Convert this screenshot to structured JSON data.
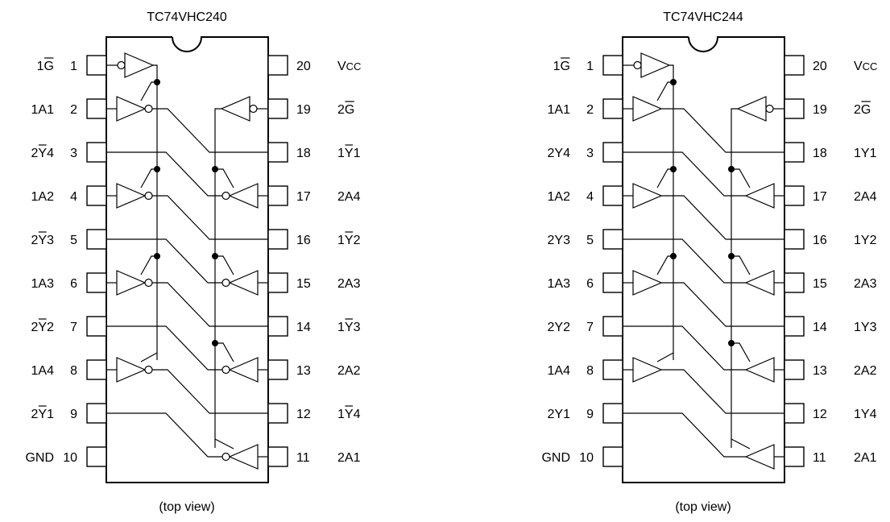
{
  "chips": [
    {
      "title": "TC74VHC240",
      "inverting": true,
      "caption": "(top view)",
      "left_pins": [
        {
          "num": "1",
          "label": "1G",
          "bar": "last"
        },
        {
          "num": "2",
          "label": "1A1",
          "bar": "none"
        },
        {
          "num": "3",
          "label": "2Y4",
          "bar": "mid"
        },
        {
          "num": "4",
          "label": "1A2",
          "bar": "none"
        },
        {
          "num": "5",
          "label": "2Y3",
          "bar": "mid"
        },
        {
          "num": "6",
          "label": "1A3",
          "bar": "none"
        },
        {
          "num": "7",
          "label": "2Y2",
          "bar": "mid"
        },
        {
          "num": "8",
          "label": "1A4",
          "bar": "none"
        },
        {
          "num": "9",
          "label": "2Y1",
          "bar": "mid"
        },
        {
          "num": "10",
          "label": "GND",
          "bar": "none"
        }
      ],
      "right_pins": [
        {
          "num": "20",
          "label": "VCC",
          "bar": "none"
        },
        {
          "num": "19",
          "label": "2G",
          "bar": "last"
        },
        {
          "num": "18",
          "label": "1Y1",
          "bar": "mid"
        },
        {
          "num": "17",
          "label": "2A4",
          "bar": "none"
        },
        {
          "num": "16",
          "label": "1Y2",
          "bar": "mid"
        },
        {
          "num": "15",
          "label": "2A3",
          "bar": "none"
        },
        {
          "num": "14",
          "label": "1Y3",
          "bar": "mid"
        },
        {
          "num": "13",
          "label": "2A2",
          "bar": "none"
        },
        {
          "num": "12",
          "label": "1Y4",
          "bar": "mid"
        },
        {
          "num": "11",
          "label": "2A1",
          "bar": "none"
        }
      ]
    },
    {
      "title": "TC74VHC244",
      "inverting": false,
      "caption": "(top view)",
      "left_pins": [
        {
          "num": "1",
          "label": "1G",
          "bar": "last"
        },
        {
          "num": "2",
          "label": "1A1",
          "bar": "none"
        },
        {
          "num": "3",
          "label": "2Y4",
          "bar": "none"
        },
        {
          "num": "4",
          "label": "1A2",
          "bar": "none"
        },
        {
          "num": "5",
          "label": "2Y3",
          "bar": "none"
        },
        {
          "num": "6",
          "label": "1A3",
          "bar": "none"
        },
        {
          "num": "7",
          "label": "2Y2",
          "bar": "none"
        },
        {
          "num": "8",
          "label": "1A4",
          "bar": "none"
        },
        {
          "num": "9",
          "label": "2Y1",
          "bar": "none"
        },
        {
          "num": "10",
          "label": "GND",
          "bar": "none"
        }
      ],
      "right_pins": [
        {
          "num": "20",
          "label": "VCC",
          "bar": "none"
        },
        {
          "num": "19",
          "label": "2G",
          "bar": "last"
        },
        {
          "num": "18",
          "label": "1Y1",
          "bar": "none"
        },
        {
          "num": "17",
          "label": "2A4",
          "bar": "none"
        },
        {
          "num": "16",
          "label": "1Y2",
          "bar": "none"
        },
        {
          "num": "15",
          "label": "2A3",
          "bar": "none"
        },
        {
          "num": "14",
          "label": "1Y3",
          "bar": "none"
        },
        {
          "num": "13",
          "label": "2A2",
          "bar": "none"
        },
        {
          "num": "12",
          "label": "1Y4",
          "bar": "none"
        },
        {
          "num": "11",
          "label": "2A1",
          "bar": "none"
        }
      ]
    }
  ]
}
